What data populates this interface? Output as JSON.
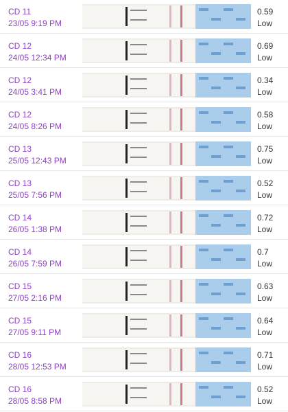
{
  "rows": [
    {
      "cycle_day": "CD 11",
      "datetime": "23/05 9:19 PM",
      "value": "0.59",
      "level": "Low"
    },
    {
      "cycle_day": "CD 12",
      "datetime": "24/05 12:34 PM",
      "value": "0.69",
      "level": "Low"
    },
    {
      "cycle_day": "CD 12",
      "datetime": "24/05 3:41 PM",
      "value": "0.34",
      "level": "Low"
    },
    {
      "cycle_day": "CD 12",
      "datetime": "24/05 8:26 PM",
      "value": "0.58",
      "level": "Low"
    },
    {
      "cycle_day": "CD 13",
      "datetime": "25/05 12:43 PM",
      "value": "0.75",
      "level": "Low"
    },
    {
      "cycle_day": "CD 13",
      "datetime": "25/05 7:56 PM",
      "value": "0.52",
      "level": "Low"
    },
    {
      "cycle_day": "CD 14",
      "datetime": "26/05 1:38 PM",
      "value": "0.72",
      "level": "Low"
    },
    {
      "cycle_day": "CD 14",
      "datetime": "26/05 7:59 PM",
      "value": "0.7",
      "level": "Low"
    },
    {
      "cycle_day": "CD 15",
      "datetime": "27/05 2:16 PM",
      "value": "0.63",
      "level": "Low"
    },
    {
      "cycle_day": "CD 15",
      "datetime": "27/05 9:11 PM",
      "value": "0.64",
      "level": "Low"
    },
    {
      "cycle_day": "CD 16",
      "datetime": "28/05 12:53 PM",
      "value": "0.71",
      "level": "Low"
    },
    {
      "cycle_day": "CD 16",
      "datetime": "28/05 8:58 PM",
      "value": "0.52",
      "level": "Low"
    }
  ]
}
